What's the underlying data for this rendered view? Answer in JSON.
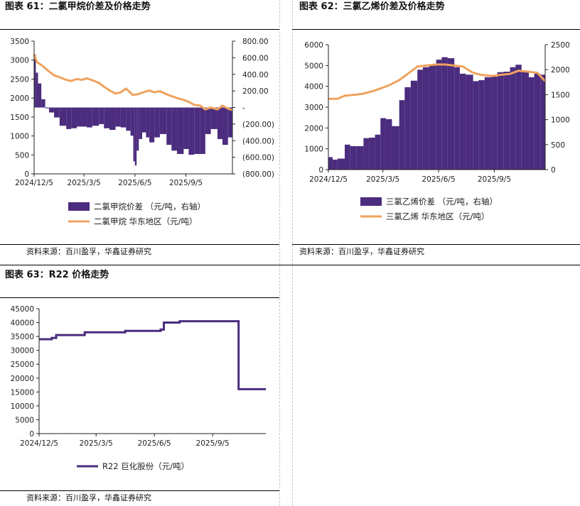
{
  "colors": {
    "purple": "#4b2c7e",
    "orange": "#f0a25e",
    "axis": "#222222"
  },
  "panels": [
    {
      "id": "p61",
      "title": "图表 61：二氯甲烷价差及价格走势",
      "source": "资料来源：百川盈孚，华鑫证券研究"
    },
    {
      "id": "p62",
      "title": "图表 62：三氯乙烯价差及价格走势",
      "source": "资料来源：百川盈孚，华鑫证券研究"
    },
    {
      "id": "p63",
      "title": "图表 63：R22 价格走势",
      "source": "资料来源：百川盈孚，华鑫证券研究"
    }
  ],
  "chart_data": [
    {
      "type": "bar+line",
      "title": "",
      "x_ticks": [
        "2024/12/5",
        "2025/3/5",
        "2025/6/5",
        "2025/9/5"
      ],
      "y_left": {
        "ticks": [
          "0",
          "500",
          "1000",
          "1500",
          "2000",
          "2500",
          "3000",
          "3500"
        ],
        "lim": [
          0,
          3500
        ]
      },
      "y_right": {
        "ticks": [
          "(800.00)",
          "(600.00)",
          "(400.00)",
          "(200.00)",
          "-",
          "200.00",
          "400.00",
          "600.00",
          "800.00"
        ],
        "lim": [
          -800,
          800
        ]
      },
      "legend": [
        "二氯甲烷价差 （元/吨，右轴）",
        "二氯甲烷 华东地区（元/吨）"
      ],
      "series": [
        {
          "name": "二氯甲烷价差 （元/吨，右轴）",
          "kind": "bar",
          "axis": "right",
          "x": [
            "2024-12-05",
            "2024-12-08",
            "2024-12-12",
            "2024-12-18",
            "2024-12-25",
            "2025-01-01",
            "2025-01-10",
            "2025-01-20",
            "2025-02-01",
            "2025-02-10",
            "2025-02-20",
            "2025-03-01",
            "2025-03-10",
            "2025-03-20",
            "2025-04-01",
            "2025-04-10",
            "2025-04-20",
            "2025-05-01",
            "2025-05-10",
            "2025-05-20",
            "2025-05-28",
            "2025-06-02",
            "2025-06-05",
            "2025-06-08",
            "2025-06-12",
            "2025-06-18",
            "2025-06-25",
            "2025-07-01",
            "2025-07-10",
            "2025-07-20",
            "2025-08-01",
            "2025-08-10",
            "2025-08-20",
            "2025-09-01",
            "2025-09-10",
            "2025-09-20",
            "2025-10-01",
            "2025-10-10",
            "2025-10-20",
            "2025-11-01",
            "2025-11-10",
            "2025-11-20",
            "2025-11-28"
          ],
          "values": [
            640,
            420,
            290,
            100,
            -10,
            -60,
            -120,
            -220,
            -260,
            -250,
            -230,
            -230,
            -240,
            -220,
            -200,
            -250,
            -270,
            -230,
            -240,
            -280,
            -340,
            -650,
            -700,
            -520,
            -380,
            -300,
            -360,
            -420,
            -360,
            -320,
            -450,
            -520,
            -560,
            -500,
            -570,
            -560,
            -560,
            -320,
            -260,
            -380,
            -450,
            -360,
            -500
          ]
        },
        {
          "name": "二氯甲烷 华东地区（元/吨）",
          "kind": "line",
          "axis": "left",
          "x": [
            "2024-12-05",
            "2024-12-10",
            "2024-12-20",
            "2025-01-01",
            "2025-01-10",
            "2025-01-20",
            "2025-02-01",
            "2025-02-10",
            "2025-02-20",
            "2025-03-01",
            "2025-03-10",
            "2025-03-20",
            "2025-04-01",
            "2025-04-10",
            "2025-04-20",
            "2025-05-01",
            "2025-05-10",
            "2025-05-20",
            "2025-06-01",
            "2025-06-10",
            "2025-06-20",
            "2025-07-01",
            "2025-07-10",
            "2025-07-20",
            "2025-08-01",
            "2025-08-10",
            "2025-08-20",
            "2025-09-01",
            "2025-09-10",
            "2025-09-20",
            "2025-10-01",
            "2025-10-10",
            "2025-10-20",
            "2025-11-01",
            "2025-11-10",
            "2025-11-20",
            "2025-11-28"
          ],
          "values": [
            3150,
            2950,
            2850,
            2700,
            2600,
            2550,
            2480,
            2450,
            2500,
            2480,
            2520,
            2470,
            2400,
            2300,
            2200,
            2120,
            2150,
            2250,
            2080,
            2100,
            2150,
            2200,
            2150,
            2180,
            2100,
            2050,
            2000,
            1950,
            1900,
            1820,
            1800,
            1700,
            1750,
            1700,
            1800,
            1720,
            1680
          ]
        }
      ]
    },
    {
      "type": "bar+line",
      "title": "",
      "x_ticks": [
        "2024/12/5",
        "2025/3/5",
        "2025/6/5",
        "2025/9/5"
      ],
      "y_left": {
        "ticks": [
          "0",
          "1000",
          "2000",
          "3000",
          "4000",
          "5000",
          "6000"
        ],
        "lim": [
          0,
          6000
        ]
      },
      "y_right": {
        "ticks": [
          "0",
          "500",
          "1000",
          "1500",
          "2000",
          "2500"
        ],
        "lim": [
          0,
          2500
        ]
      },
      "legend": [
        "三氯乙烯价差 （元/吨，右轴）",
        "三氯乙烯 华东地区（元/吨）"
      ],
      "series": [
        {
          "name": "三氯乙烯价差 （元/吨，右轴）",
          "kind": "bar",
          "axis": "right",
          "x": [
            "2024-12-05",
            "2024-12-12",
            "2024-12-20",
            "2025-01-01",
            "2025-01-10",
            "2025-01-20",
            "2025-02-01",
            "2025-02-10",
            "2025-02-20",
            "2025-03-01",
            "2025-03-10",
            "2025-03-20",
            "2025-04-01",
            "2025-04-10",
            "2025-04-20",
            "2025-05-01",
            "2025-05-10",
            "2025-05-20",
            "2025-06-01",
            "2025-06-10",
            "2025-06-20",
            "2025-07-01",
            "2025-07-10",
            "2025-07-20",
            "2025-08-01",
            "2025-08-10",
            "2025-08-20",
            "2025-09-01",
            "2025-09-10",
            "2025-09-20",
            "2025-10-01",
            "2025-10-10",
            "2025-10-20",
            "2025-11-01",
            "2025-11-10",
            "2025-11-20",
            "2025-11-28"
          ],
          "values": [
            250,
            200,
            220,
            500,
            470,
            470,
            630,
            640,
            700,
            1030,
            1010,
            870,
            1390,
            1650,
            1780,
            2000,
            2050,
            2100,
            2200,
            2250,
            2230,
            2050,
            1920,
            1900,
            1770,
            1790,
            1850,
            1860,
            1950,
            1960,
            2050,
            2100,
            1970,
            1850,
            1920,
            1900,
            1300
          ]
        },
        {
          "name": "三氯乙烯 华东地区（元/吨）",
          "kind": "line",
          "axis": "left",
          "x": [
            "2024-12-05",
            "2024-12-20",
            "2025-01-01",
            "2025-01-20",
            "2025-02-01",
            "2025-02-20",
            "2025-03-01",
            "2025-03-15",
            "2025-04-01",
            "2025-04-15",
            "2025-05-01",
            "2025-05-15",
            "2025-06-01",
            "2025-06-15",
            "2025-07-01",
            "2025-07-15",
            "2025-08-01",
            "2025-08-15",
            "2025-09-01",
            "2025-09-15",
            "2025-10-01",
            "2025-10-15",
            "2025-11-01",
            "2025-11-15",
            "2025-11-28"
          ],
          "values": [
            3400,
            3400,
            3550,
            3600,
            3650,
            3800,
            3900,
            4050,
            4300,
            4600,
            4950,
            5000,
            5050,
            5050,
            5000,
            4950,
            4650,
            4550,
            4500,
            4550,
            4600,
            4750,
            4700,
            4650,
            4250
          ]
        }
      ]
    },
    {
      "type": "line",
      "title": "",
      "x_ticks": [
        "2024/12/5",
        "2025/3/5",
        "2025/6/5",
        "2025/9/5"
      ],
      "y_left": {
        "ticks": [
          "0",
          "5000",
          "10000",
          "15000",
          "20000",
          "25000",
          "30000",
          "35000",
          "40000",
          "45000"
        ],
        "lim": [
          0,
          45000
        ]
      },
      "legend": [
        "R22 巨化股份（元/吨）"
      ],
      "series": [
        {
          "name": "R22 巨化股份（元/吨）",
          "kind": "step",
          "axis": "left",
          "x": [
            "2024-12-05",
            "2024-12-25",
            "2025-01-01",
            "2025-01-15",
            "2025-02-01",
            "2025-02-15",
            "2025-03-01",
            "2025-03-20",
            "2025-04-01",
            "2025-04-20",
            "2025-05-01",
            "2025-05-20",
            "2025-06-01",
            "2025-06-15",
            "2025-06-20",
            "2025-07-01",
            "2025-07-15",
            "2025-08-01",
            "2025-08-20",
            "2025-09-01",
            "2025-09-20",
            "2025-10-01",
            "2025-10-15",
            "2025-10-16",
            "2025-11-01",
            "2025-11-28"
          ],
          "values": [
            34000,
            34500,
            35500,
            35500,
            35500,
            36500,
            36500,
            36500,
            36500,
            37000,
            37000,
            37000,
            37000,
            37500,
            40000,
            40000,
            40500,
            40500,
            40500,
            40500,
            40500,
            40500,
            40500,
            16000,
            16000,
            16000
          ]
        }
      ]
    }
  ]
}
